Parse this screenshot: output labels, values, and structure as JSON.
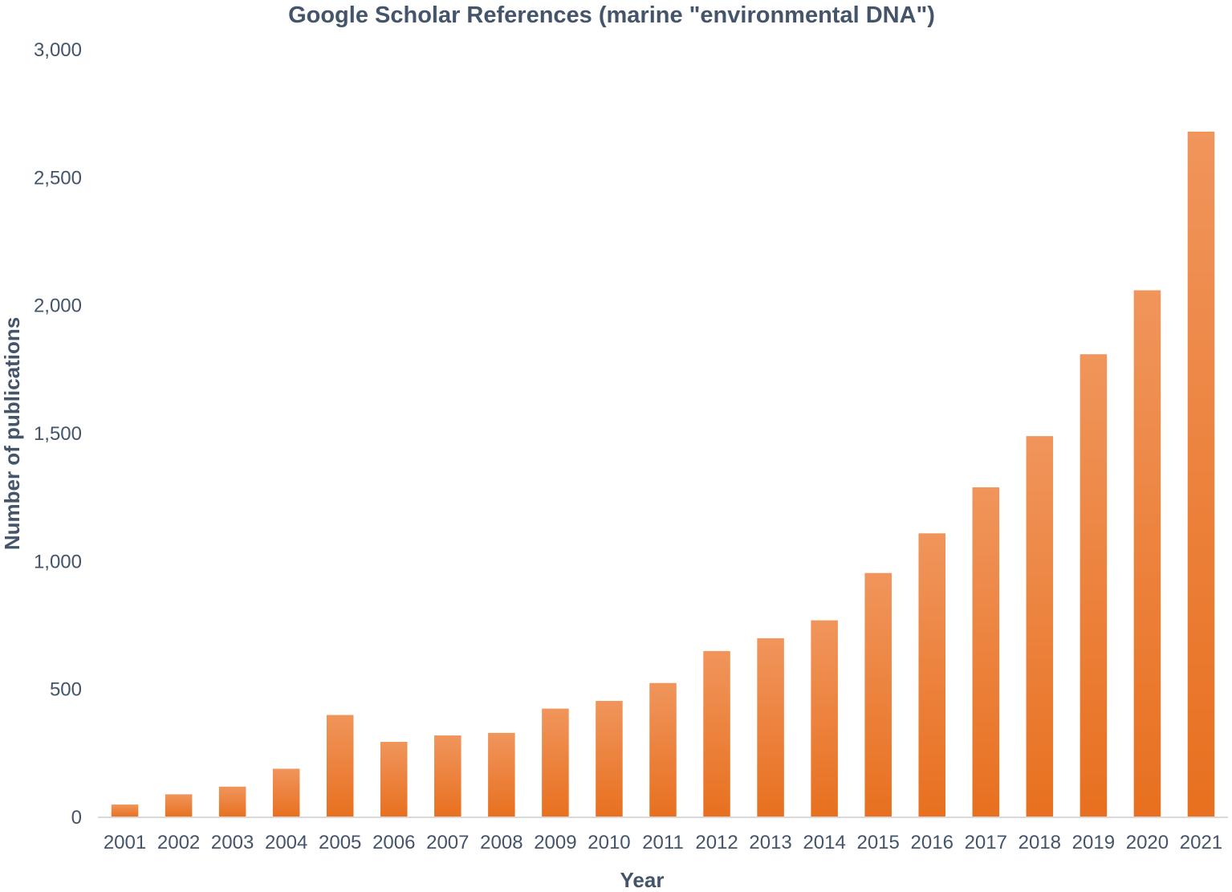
{
  "chart_data": {
    "type": "bar",
    "title": "Google Scholar References (marine \"environmental DNA\")",
    "xlabel": "Year",
    "ylabel": "Number of publications",
    "ylim": [
      0,
      3000
    ],
    "yticks": [
      "0",
      "500",
      "1,000",
      "1,500",
      "2,000",
      "2,500",
      "3,000"
    ],
    "ytick_values": [
      0,
      500,
      1000,
      1500,
      2000,
      2500,
      3000
    ],
    "categories": [
      "2001",
      "2002",
      "2003",
      "2004",
      "2005",
      "2006",
      "2007",
      "2008",
      "2009",
      "2010",
      "2011",
      "2012",
      "2013",
      "2014",
      "2015",
      "2016",
      "2017",
      "2018",
      "2019",
      "2020",
      "2021"
    ],
    "values": [
      50,
      90,
      120,
      190,
      400,
      295,
      320,
      330,
      425,
      455,
      525,
      650,
      700,
      770,
      955,
      1110,
      1290,
      1490,
      1810,
      2060,
      2680
    ],
    "grid": false,
    "legend": "none",
    "colors": {
      "bar_top": "#f0955c",
      "bar_bottom": "#e8701f",
      "text": "#44546a",
      "axis": "#d9d9d9"
    }
  }
}
